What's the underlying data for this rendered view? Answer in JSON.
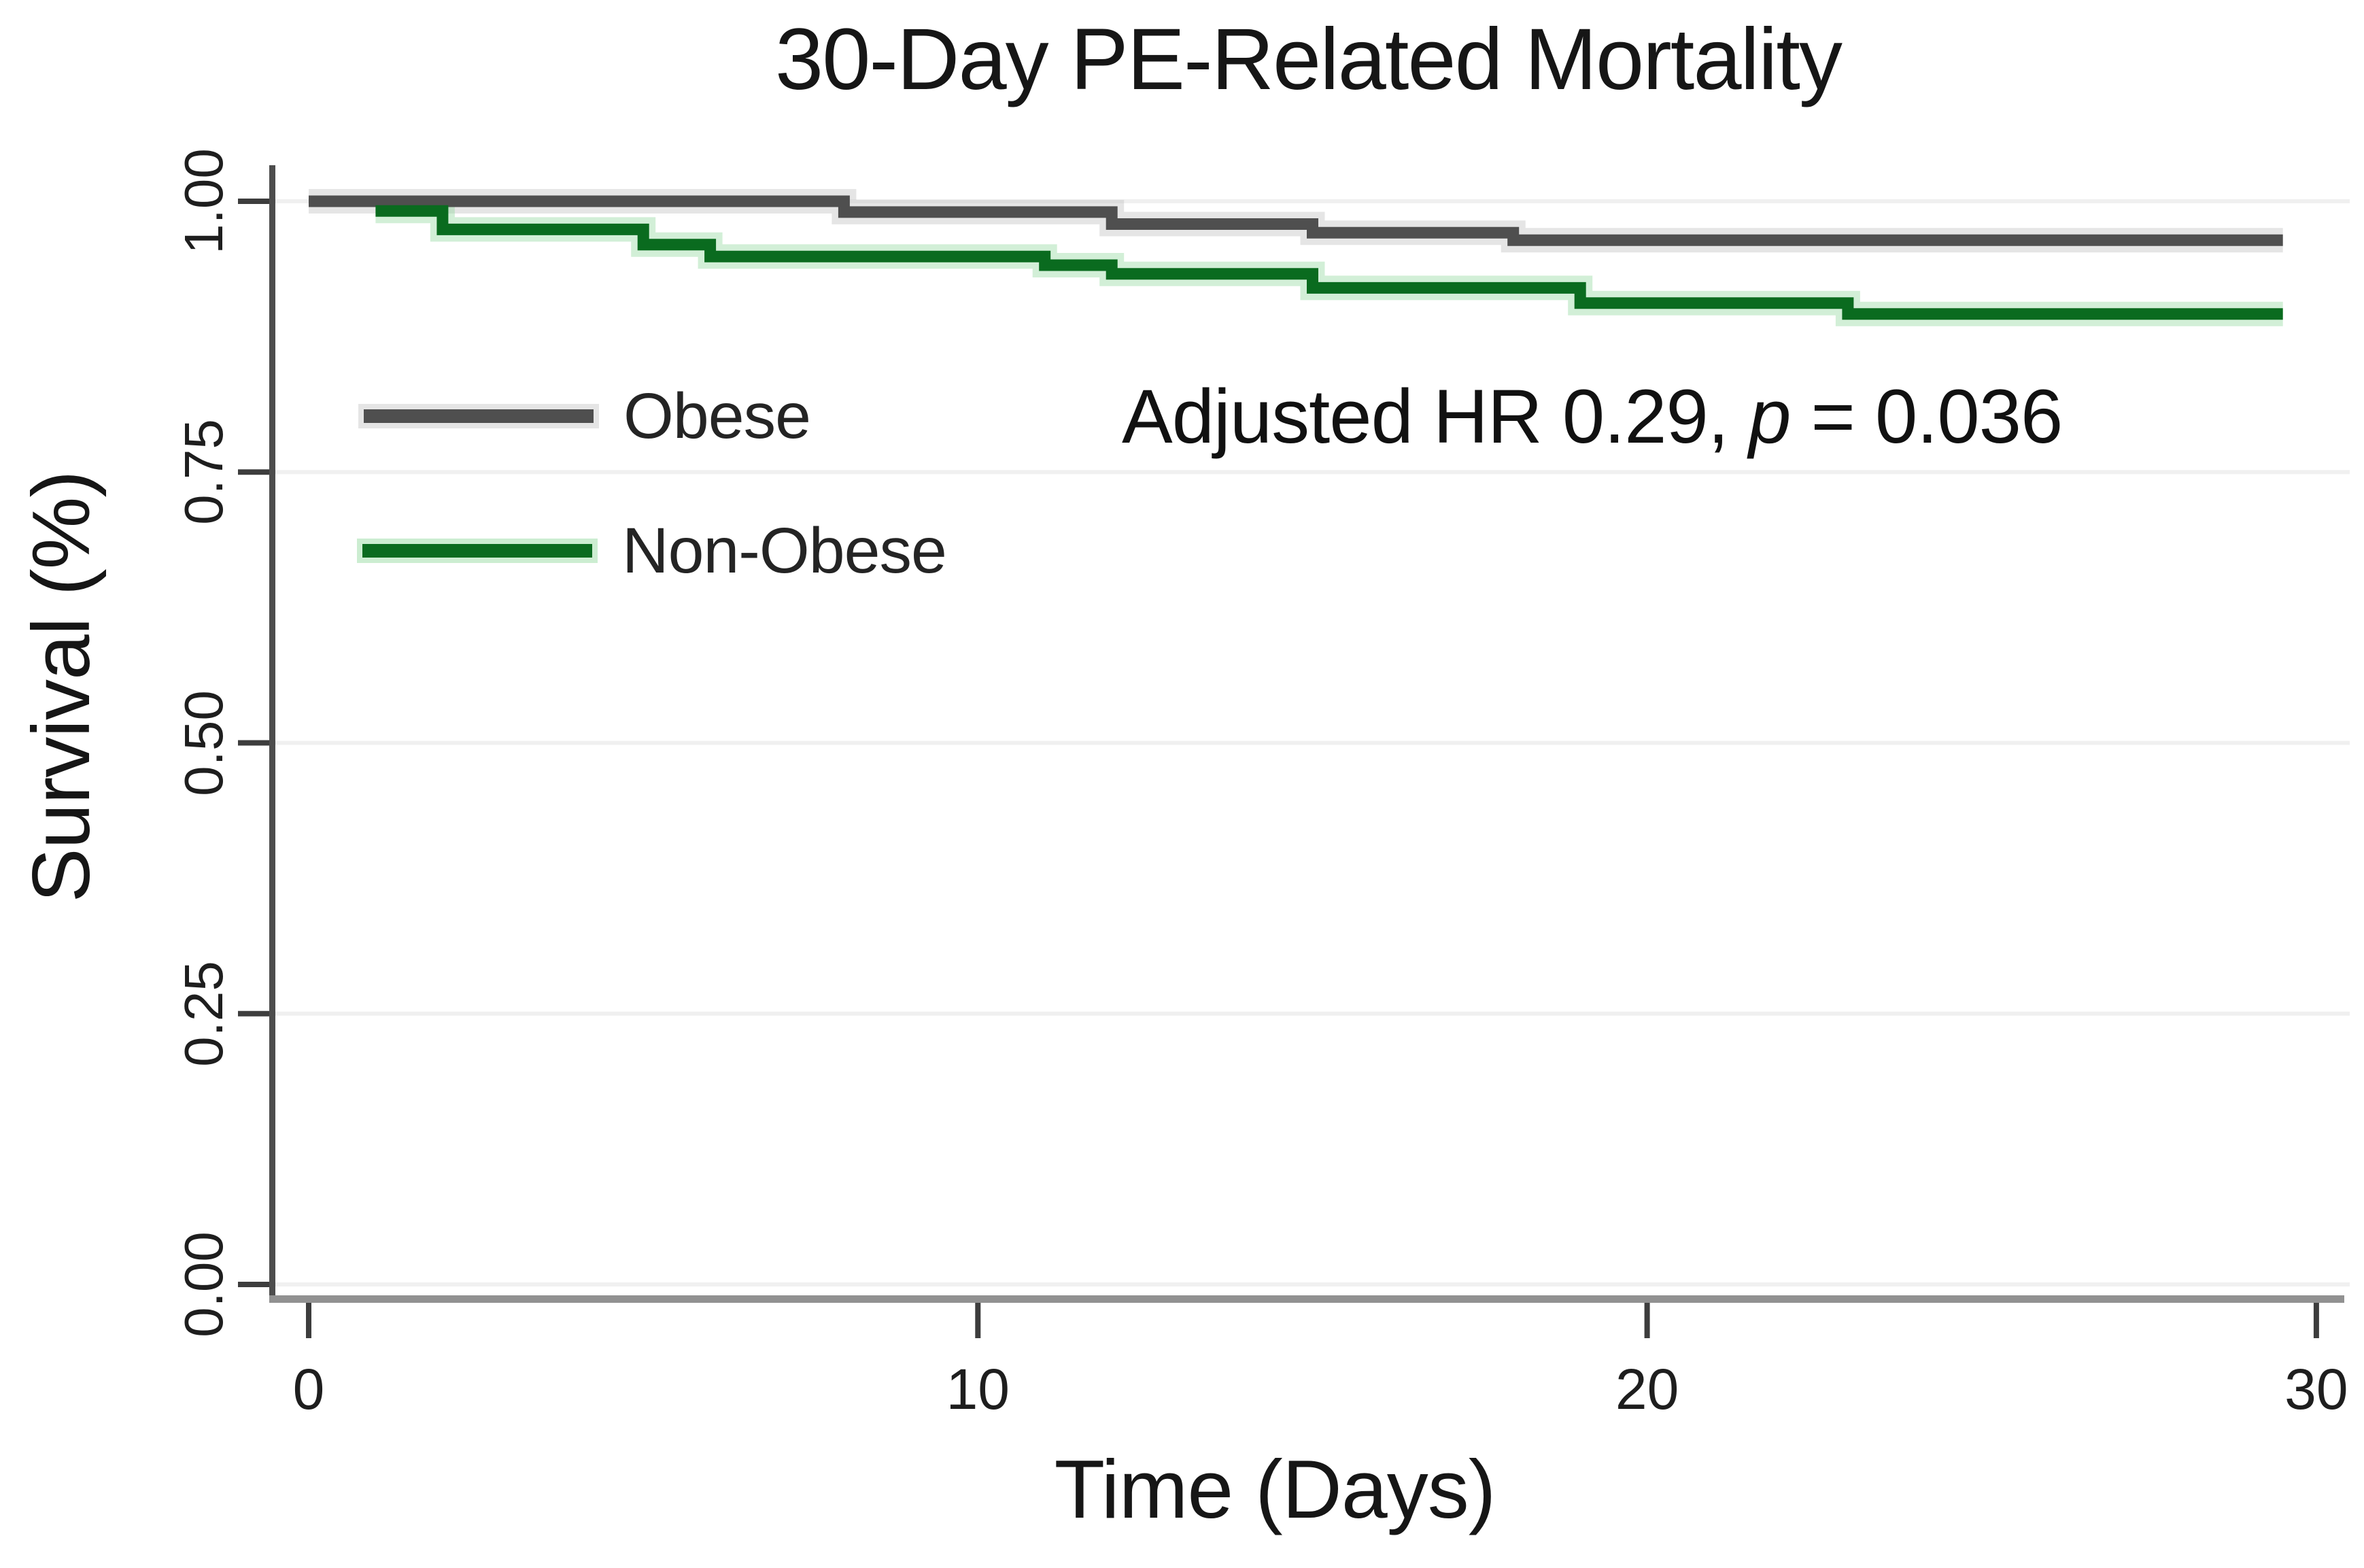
{
  "header": {
    "title": "30-Day PE-Related Mortality"
  },
  "y_axis": {
    "label": "Survival (%)",
    "ticks": [
      {
        "label": "1.00",
        "v": 1.0
      },
      {
        "label": "0.75",
        "v": 0.75
      },
      {
        "label": "0.50",
        "v": 0.5
      },
      {
        "label": "0.25",
        "v": 0.25
      },
      {
        "label": "0.00",
        "v": 0.0
      }
    ]
  },
  "x_axis": {
    "label": "Time (Days)",
    "ticks": [
      {
        "label": "0",
        "t": 0
      },
      {
        "label": "10",
        "t": 10
      },
      {
        "label": "20",
        "t": 20
      },
      {
        "label": "30",
        "t": 30
      }
    ]
  },
  "annotation": {
    "before_p": "Adjusted HR 0.29, ",
    "p": "p",
    "after_p": " = 0.036"
  },
  "legend": {
    "items": [
      {
        "label": "Obese",
        "color": "#4f4f4f"
      },
      {
        "label": "Non-Obese",
        "color": "#0a6b1f"
      }
    ]
  },
  "colors": {
    "obese_line": "#4f4f4f",
    "obese_halo": "#bdbdbd",
    "non_obese_line": "#0a6b1f",
    "non_obese_halo": "#8fd79a",
    "gridline": "#f0f0f0",
    "y_axis_line": "#4d4d4d",
    "x_axis_line": "#919191",
    "tick_mark": "#3d3d3d",
    "text": "#161616"
  },
  "chart_data": {
    "type": "line",
    "subtype": "kaplan-meier-step",
    "title": "30-Day PE-Related Mortality",
    "xlabel": "Time (Days)",
    "ylabel": "Survival (%)",
    "xlim": [
      0,
      30
    ],
    "ylim": [
      0.0,
      1.0
    ],
    "x_ticks": [
      0,
      10,
      20,
      30
    ],
    "y_ticks": [
      0.0,
      0.25,
      0.5,
      0.75,
      1.0
    ],
    "grid": "horizontal",
    "legend_position": "upper-left-inside",
    "annotation": "Adjusted HR 0.29, p = 0.036",
    "series": [
      {
        "name": "Obese",
        "color": "#4f4f4f",
        "halo": "#bdbdbd",
        "steps": [
          [
            0,
            1.0
          ],
          [
            8,
            0.99
          ],
          [
            12,
            0.979
          ],
          [
            15,
            0.971
          ],
          [
            18,
            0.964
          ],
          [
            29.5,
            0.964
          ]
        ]
      },
      {
        "name": "Non-Obese",
        "color": "#0a6b1f",
        "halo": "#8fd79a",
        "steps": [
          [
            1,
            0.991
          ],
          [
            2,
            0.974
          ],
          [
            5,
            0.96
          ],
          [
            6,
            0.949
          ],
          [
            11,
            0.941
          ],
          [
            12,
            0.933
          ],
          [
            15,
            0.92
          ],
          [
            19,
            0.906
          ],
          [
            23,
            0.896
          ],
          [
            29.5,
            0.896
          ]
        ]
      }
    ]
  }
}
